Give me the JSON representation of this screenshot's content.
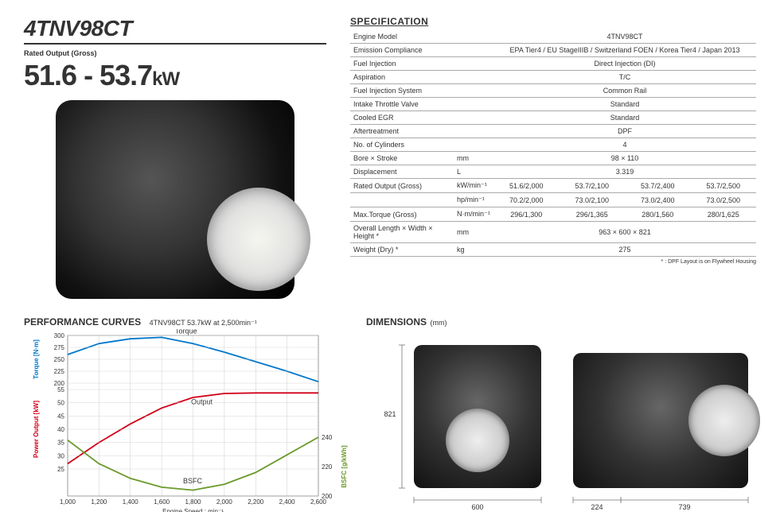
{
  "header": {
    "model": "4TNV98CT",
    "rated_label": "Rated Output (Gross)",
    "power_range": "51.6 - 53.7",
    "power_unit": "kW"
  },
  "spec": {
    "title": "SPECIFICATION",
    "rows_single": [
      {
        "label": "Engine Model",
        "value": "4TNV98CT"
      },
      {
        "label": "Emission Compliance",
        "value": "EPA Tier4 / EU StageIIIB / Switzerland FOEN / Korea Tier4 / Japan 2013"
      },
      {
        "label": "Fuel Injection",
        "value": "Direct Injection (DI)"
      },
      {
        "label": "Aspiration",
        "value": "T/C"
      },
      {
        "label": "Fuel Injection System",
        "value": "Common Rail"
      },
      {
        "label": "Intake Throttle Valve",
        "value": "Standard"
      },
      {
        "label": "Cooled EGR",
        "value": "Standard"
      },
      {
        "label": "Aftertreatment",
        "value": "DPF"
      },
      {
        "label": "No. of Cylinders",
        "value": "4"
      }
    ],
    "rows_unit_single": [
      {
        "label": "Bore × Stroke",
        "unit": "mm",
        "value": "98 × 110"
      },
      {
        "label": "Displacement",
        "unit": "L",
        "value": "3.319"
      }
    ],
    "rows_multi": [
      {
        "label": "Rated Output (Gross)",
        "unit": "kW/min⁻¹",
        "v": [
          "51.6/2,000",
          "53.7/2,100",
          "53.7/2,400",
          "53.7/2,500"
        ]
      },
      {
        "label": "",
        "unit": "hp/min⁻¹",
        "v": [
          "70.2/2,000",
          "73.0/2,100",
          "73.0/2,400",
          "73.0/2,500"
        ]
      },
      {
        "label": "Max.Torque (Gross)",
        "unit": "N·m/min⁻¹",
        "v": [
          "296/1,300",
          "296/1,365",
          "280/1,560",
          "280/1,625"
        ]
      }
    ],
    "rows_foot": [
      {
        "label": "Overall Length × Width × Height *",
        "unit": "mm",
        "value": "963 × 600 × 821"
      },
      {
        "label": "Weight (Dry) *",
        "unit": "kg",
        "value": "275"
      }
    ],
    "footnote": "* : DPF Layout is on Flywheel Housing"
  },
  "curves": {
    "title": "PERFORMANCE CURVES",
    "subtitle": "4TNV98CT 53.7kW at 2,500min⁻¹",
    "x_label": "Engine Speed : min⁻¹",
    "x_ticks": [
      "1,000",
      "1,200",
      "1,400",
      "1,600",
      "1,800",
      "2,000",
      "2,200",
      "2,400",
      "2,600"
    ],
    "torque": {
      "title": "Torque [N·m]",
      "color": "#0077cc",
      "ticks": [
        200,
        225,
        250,
        275,
        300
      ],
      "series": [
        [
          1000,
          260
        ],
        [
          1200,
          283
        ],
        [
          1400,
          293
        ],
        [
          1600,
          296
        ],
        [
          1800,
          283
        ],
        [
          2000,
          265
        ],
        [
          2200,
          245
        ],
        [
          2400,
          225
        ],
        [
          2600,
          203
        ]
      ],
      "label": "Torque"
    },
    "output": {
      "title": "Power Output [kW]",
      "color": "#d10018",
      "ticks": [
        25,
        30,
        35,
        40,
        45,
        50,
        55
      ],
      "series": [
        [
          1000,
          27
        ],
        [
          1200,
          35
        ],
        [
          1400,
          42
        ],
        [
          1600,
          48
        ],
        [
          1800,
          52
        ],
        [
          2000,
          53.5
        ],
        [
          2200,
          53.7
        ],
        [
          2400,
          53.7
        ],
        [
          2600,
          53.7
        ]
      ],
      "label": "Output"
    },
    "bsfc": {
      "title": "BSFC [g/kWh]",
      "color": "#6a9a2a",
      "ticks": [
        200,
        220,
        240
      ],
      "series": [
        [
          1000,
          238
        ],
        [
          1200,
          222
        ],
        [
          1400,
          212
        ],
        [
          1600,
          206
        ],
        [
          1800,
          204
        ],
        [
          2000,
          208
        ],
        [
          2200,
          216
        ],
        [
          2400,
          228
        ],
        [
          2600,
          240
        ]
      ],
      "label": "BSFC"
    },
    "grid_color": "#cccccc",
    "background": "#ffffff"
  },
  "dimensions": {
    "title": "DIMENSIONS",
    "unit": "(mm)",
    "height": "821",
    "width": "600",
    "side_a": "224",
    "side_b": "739"
  }
}
